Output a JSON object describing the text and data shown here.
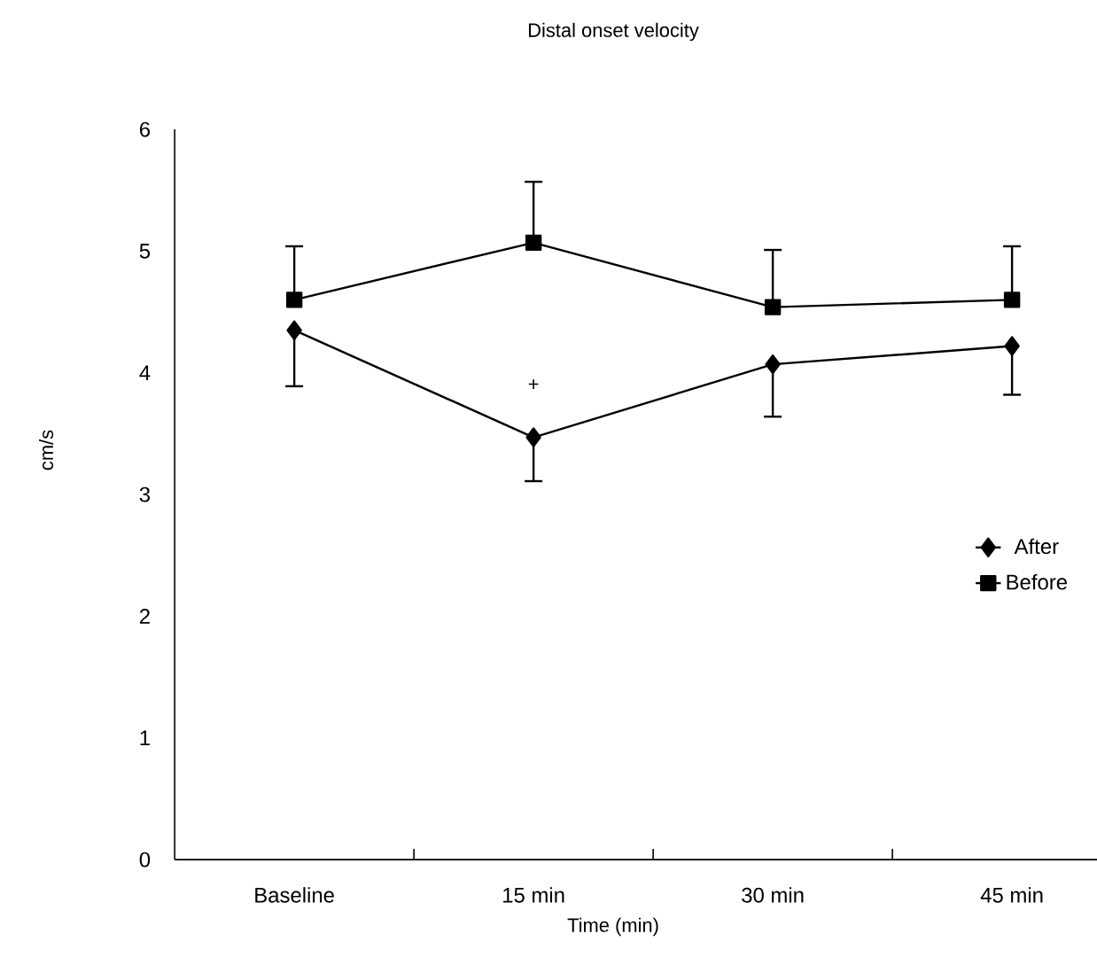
{
  "chart_data": {
    "type": "line",
    "title": "Distal onset velocity",
    "xlabel": "Time (min)",
    "ylabel": "cm/s",
    "categories": [
      "Baseline",
      "15 min",
      "30 min",
      "45 min"
    ],
    "series": [
      {
        "name": "After",
        "color": "#000000",
        "marker": "diamond",
        "values": [
          4.35,
          3.47,
          4.07,
          4.22
        ],
        "errors": [
          [
            3.89,
            4.35
          ],
          [
            3.11,
            3.47
          ],
          [
            3.64,
            4.07
          ],
          [
            3.82,
            4.22
          ]
        ]
      },
      {
        "name": "Before",
        "color": "#000000",
        "marker": "square",
        "values": [
          4.6,
          5.07,
          4.54,
          4.6
        ],
        "errors": [
          [
            4.6,
            5.04
          ],
          [
            5.07,
            5.57
          ],
          [
            4.54,
            5.01
          ],
          [
            4.6,
            5.04
          ]
        ]
      }
    ],
    "ylim": [
      0,
      6
    ],
    "yticks": [
      0,
      1,
      2,
      3,
      4,
      5,
      6
    ],
    "grid": false,
    "legend": "right",
    "line_style": "solid",
    "annotations": [
      "+"
    ]
  }
}
